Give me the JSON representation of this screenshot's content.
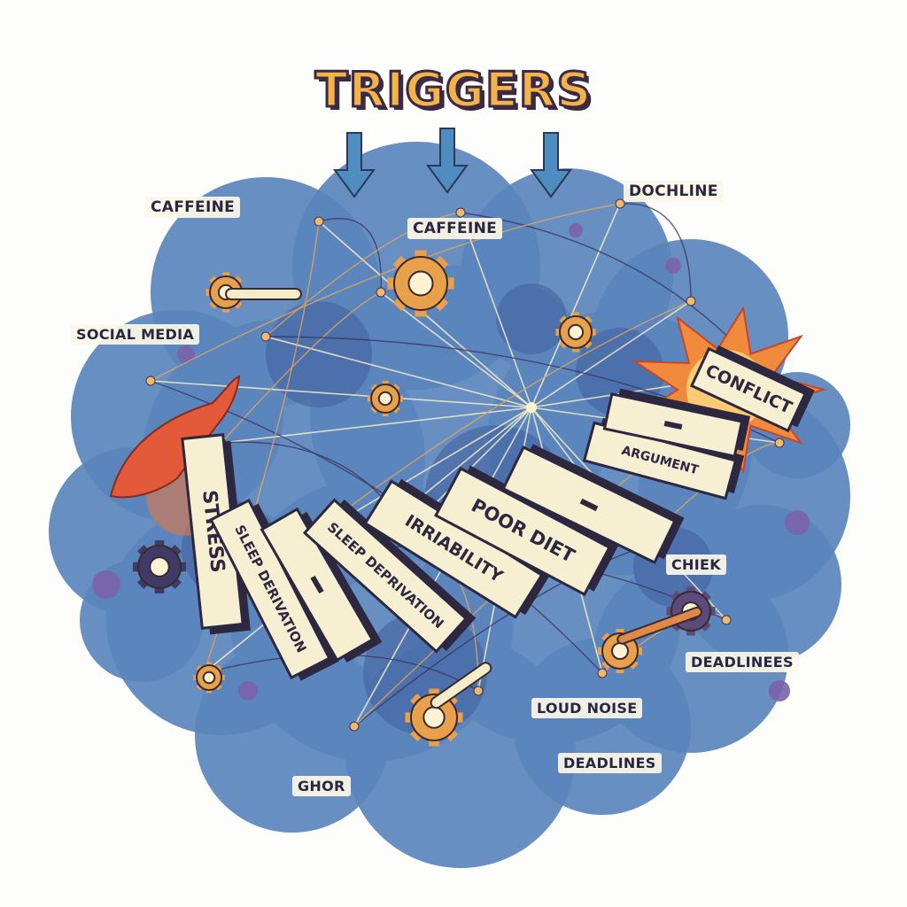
{
  "title": "TRIGGERS",
  "floating_labels": [
    {
      "id": "caffeine-left",
      "text": "CAFFEINE"
    },
    {
      "id": "caffeine-center",
      "text": "CAFFEINE"
    },
    {
      "id": "dochline",
      "text": "DOCHLINE"
    },
    {
      "id": "social-media",
      "text": "SOCIAL MEDIA"
    },
    {
      "id": "chiek",
      "text": "CHIEK"
    },
    {
      "id": "deadlinees",
      "text": "DEADLINEES"
    },
    {
      "id": "loud-noise",
      "text": "LOUD NOISE"
    },
    {
      "id": "deadlines",
      "text": "DEADLINES"
    },
    {
      "id": "ghor",
      "text": "GHOR"
    }
  ],
  "dominoes": [
    {
      "id": "stress",
      "text": "STRESS"
    },
    {
      "id": "sleep-deprivation-1",
      "text": "SLEEP DERIVATION"
    },
    {
      "id": "blank-1",
      "text": ""
    },
    {
      "id": "sleep-deprivation-2",
      "text": "SLEEP DEPRIVATION"
    },
    {
      "id": "irritability",
      "text": "IRRIABILITY"
    },
    {
      "id": "poor-diet",
      "text": "POOR DIET"
    },
    {
      "id": "blank-2",
      "text": ""
    },
    {
      "id": "argument",
      "text": "ARGUMENT"
    },
    {
      "id": "blank-3",
      "text": ""
    },
    {
      "id": "conflict",
      "text": "CONFLICT"
    }
  ],
  "colors": {
    "cloud": "#5a86bd",
    "cloud_dark": "#3f5f9c",
    "purple": "#7a63a8",
    "domino_face": "#f6efd2",
    "domino_edge": "#2d2740",
    "gear": "#e8a04a",
    "title_fill": "#f4b24a",
    "title_outline": "#3b2a44",
    "hand": "#e25a3a",
    "explosion": "#f08a3c",
    "arrow": "#4f8cc0"
  }
}
